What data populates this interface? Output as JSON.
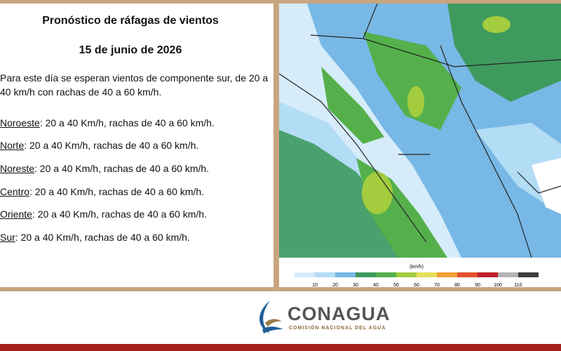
{
  "header": {
    "title": "Pronóstico de ráfagas de vientos",
    "date": "15 de junio de 2026"
  },
  "intro": "Para este día se esperan vientos de componente sur, de 20 a 40 km/h con rachas de 40 a 60 km/h.",
  "regions": [
    {
      "name": "Noroeste",
      "text": ":  20 a 40 Km/h, rachas de 40 a 60 km/h."
    },
    {
      "name": "Norte",
      "text": ": 20 a 40 Km/h, rachas de 40 a 60 km/h."
    },
    {
      "name": "Noreste",
      "text": ": 20 a 40 Km/h, rachas de 40 a 60 km/h."
    },
    {
      "name": "Centro",
      "text": ":  20 a 40 Km/h, rachas de 40 a 60 km/h."
    },
    {
      "name": "Oriente",
      "text": ":  20 a 40 Km/h, rachas de 40 a 60 km/h."
    },
    {
      "name": "Sur",
      "text": ":  20 a 40 Km/h, rachas de 40 a 60 km/h."
    }
  ],
  "legend": {
    "unit": "(km/h)",
    "colors": [
      "#d6ecfa",
      "#b3dcf5",
      "#78b8e6",
      "#3f9a5e",
      "#55b04c",
      "#a3cc3e",
      "#e6df5a",
      "#f0a033",
      "#e1502c",
      "#c01f28",
      "#b3b3b3",
      "#3c3c3c"
    ],
    "labels": [
      "10",
      "20",
      "30",
      "40",
      "50",
      "60",
      "70",
      "80",
      "90",
      "100",
      "110"
    ]
  },
  "logo": {
    "name": "CONAGUA",
    "subtitle": "COMISIÓN NACIONAL DEL AGUA"
  }
}
